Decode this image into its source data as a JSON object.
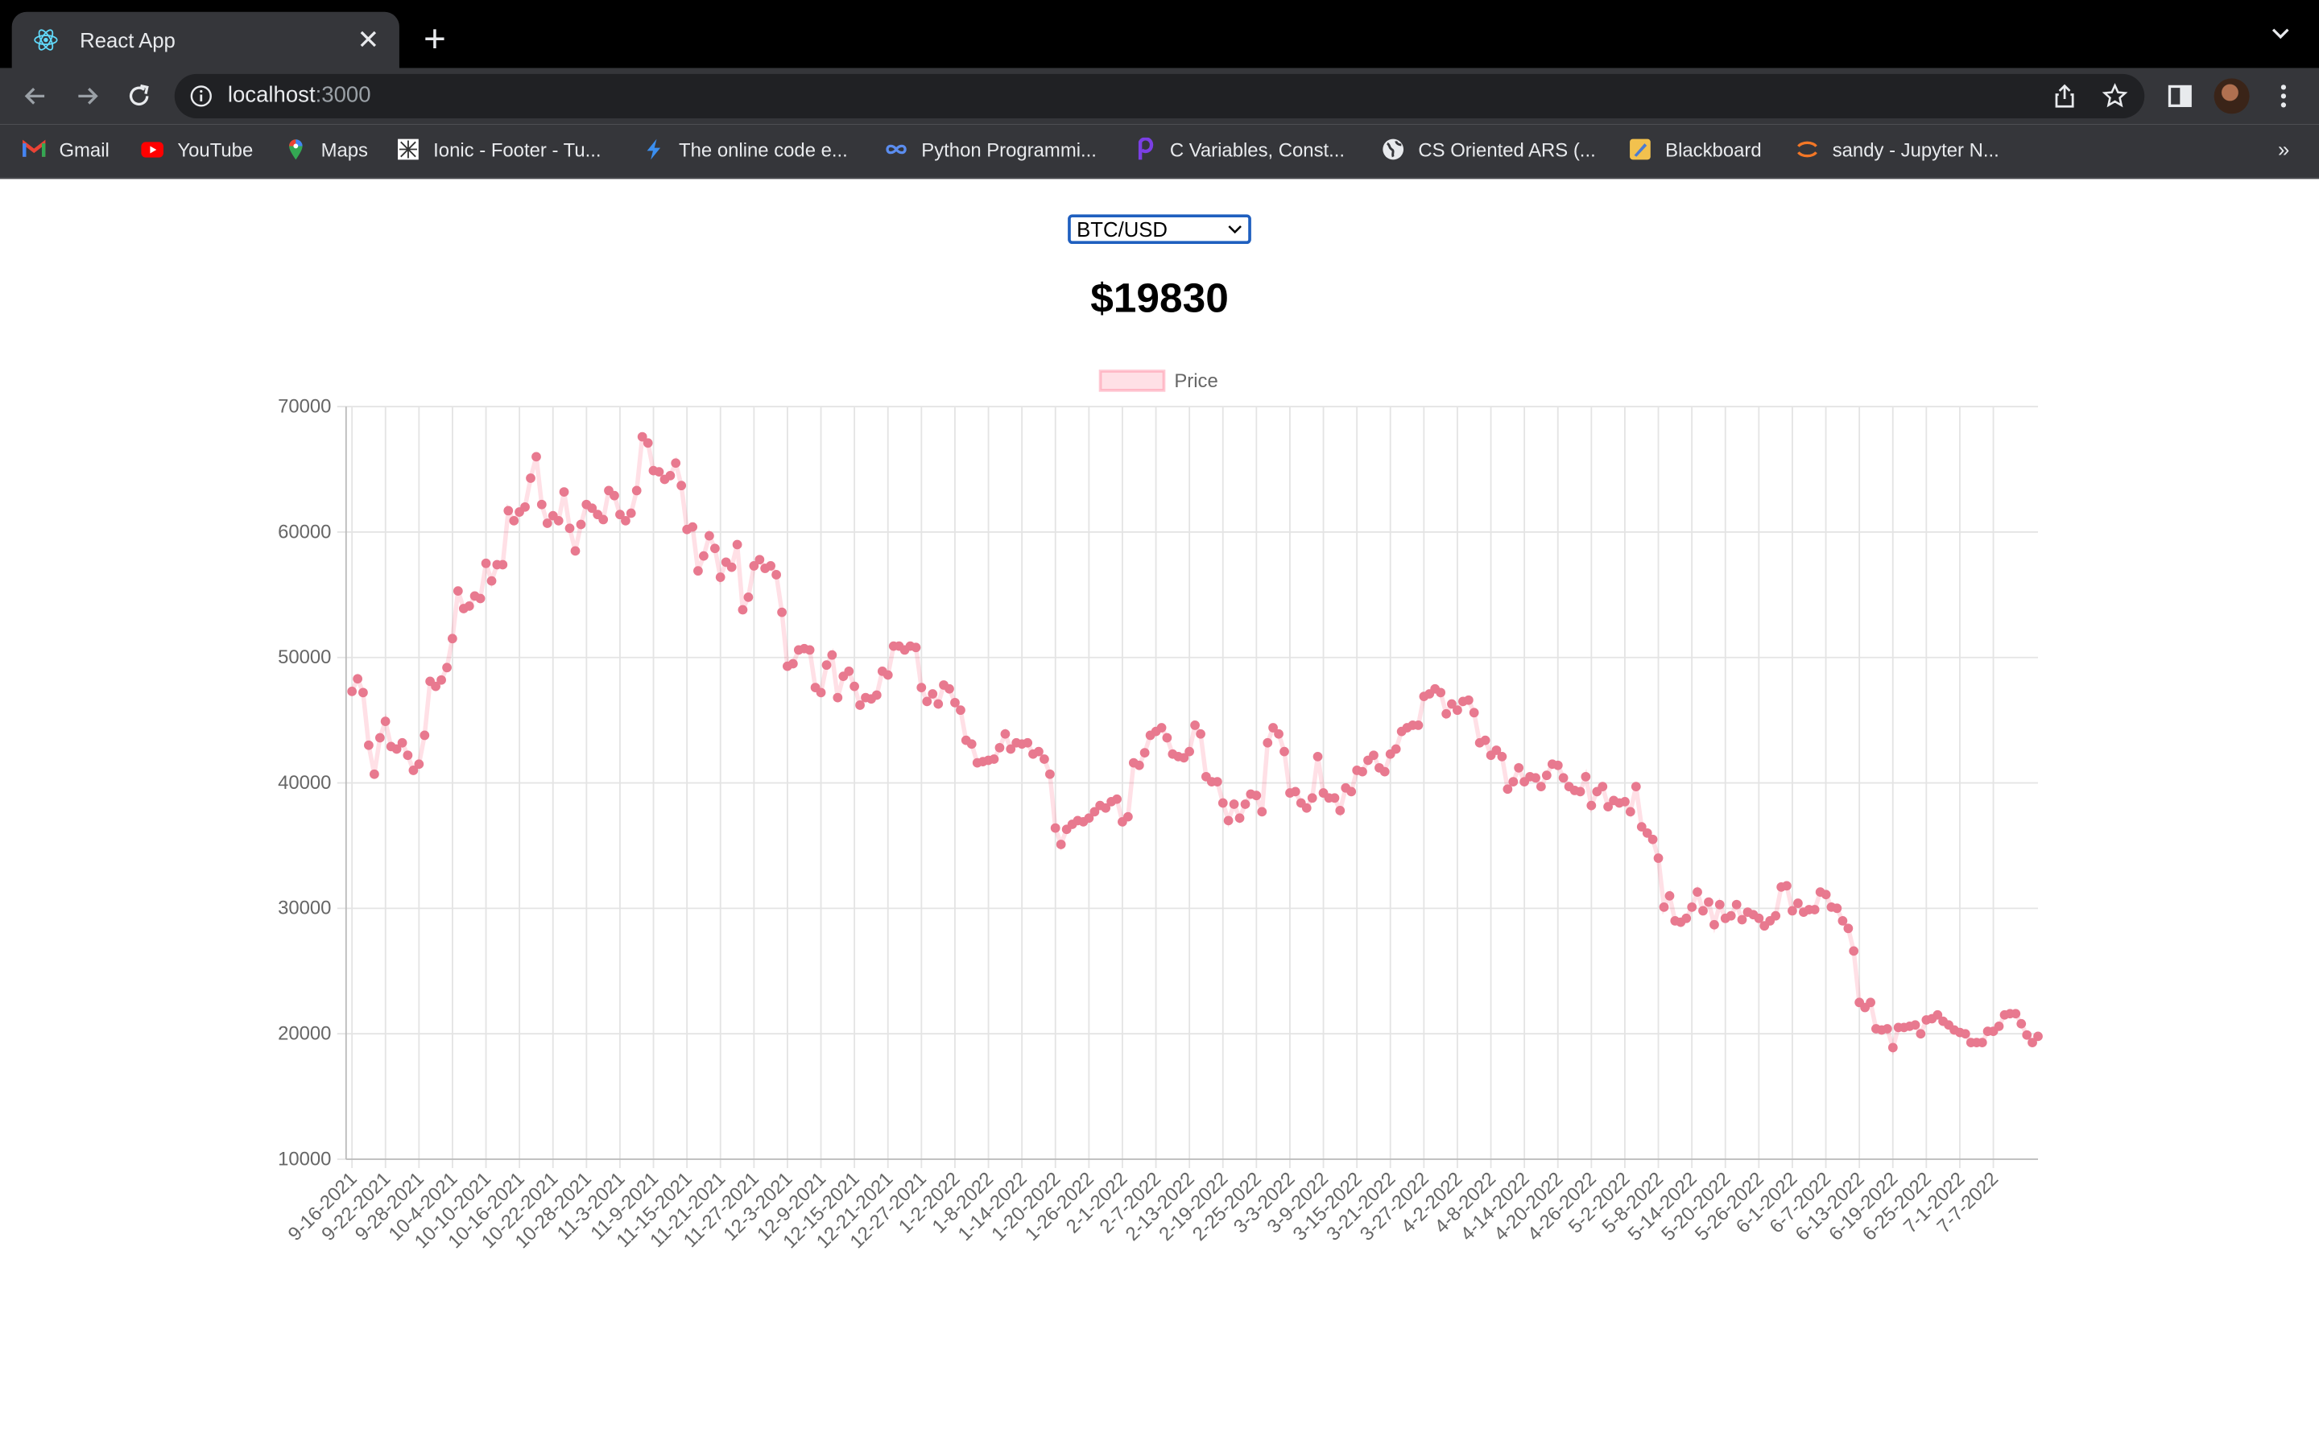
{
  "browser": {
    "tab": {
      "title": "React App"
    },
    "address": {
      "host": "localhost",
      "port": ":3000"
    },
    "bookmarks": [
      {
        "label": "Gmail",
        "icon": "gmail-icon"
      },
      {
        "label": "YouTube",
        "icon": "youtube-icon"
      },
      {
        "label": "Maps",
        "icon": "maps-icon"
      },
      {
        "label": "Ionic - Footer - Tu...",
        "icon": "ionic-icon"
      },
      {
        "label": "The online code e...",
        "icon": "bolt-icon"
      },
      {
        "label": "Python Programmi...",
        "icon": "infinity-icon"
      },
      {
        "label": "C Variables, Const...",
        "icon": "programiz-icon"
      },
      {
        "label": "CS Oriented ARS (...",
        "icon": "globe-icon"
      },
      {
        "label": "Blackboard",
        "icon": "blackboard-icon"
      },
      {
        "label": "sandy - Jupyter N...",
        "icon": "jupyter-icon"
      }
    ],
    "bookmarks_overflow": "»"
  },
  "page": {
    "select": {
      "value": "BTC/USD"
    },
    "price": "$19830"
  },
  "chart_data": {
    "type": "line",
    "legend": {
      "label": "Price",
      "position": "top"
    },
    "ylim": [
      10000,
      70000
    ],
    "yticks": [
      "70000",
      "60000",
      "50000",
      "40000",
      "30000",
      "20000",
      "10000"
    ],
    "grid": true,
    "line_color": "rgba(255, 99, 132, 0.2)",
    "point_color": "#e8798f",
    "x_start": "9-16-2021",
    "x_labels": [
      "9-16-2021",
      "9-22-2021",
      "9-28-2021",
      "10-4-2021",
      "10-10-2021",
      "10-16-2021",
      "10-22-2021",
      "10-28-2021",
      "11-3-2021",
      "11-9-2021",
      "11-15-2021",
      "11-21-2021",
      "11-27-2021",
      "12-3-2021",
      "12-9-2021",
      "12-15-2021",
      "12-21-2021",
      "12-27-2021",
      "1-2-2022",
      "1-8-2022",
      "1-14-2022",
      "1-20-2022",
      "1-26-2022",
      "2-1-2022",
      "2-7-2022",
      "2-13-2022",
      "2-19-2022",
      "2-25-2022",
      "3-3-2022",
      "3-9-2022",
      "3-15-2022",
      "3-21-2022",
      "3-27-2022",
      "4-2-2022",
      "4-8-2022",
      "4-14-2022",
      "4-20-2022",
      "4-26-2022",
      "5-2-2022",
      "5-8-2022",
      "5-14-2022",
      "5-20-2022",
      "5-26-2022",
      "6-1-2022",
      "6-7-2022",
      "6-13-2022",
      "6-19-2022",
      "6-25-2022",
      "7-1-2022",
      "7-7-2022"
    ],
    "series": [
      {
        "values": [
          47300,
          48300,
          47200,
          43000,
          40700,
          43600,
          44900,
          42900,
          42700,
          43200,
          42200,
          41000,
          41500,
          43800,
          48100,
          47700,
          48200,
          49200,
          51500,
          55300,
          53900,
          54100,
          54900,
          54700,
          57500,
          56100,
          57400,
          57400,
          61700,
          60900,
          61600,
          62000,
          64300,
          66000,
          62200,
          60700,
          61300,
          60900,
          63200,
          60300,
          58500,
          60600,
          62200,
          61900,
          61400,
          61000,
          63300,
          62900,
          61400,
          60900,
          61500,
          63300,
          67600,
          67100,
          64900,
          64800,
          64200,
          64500,
          65500,
          63700,
          60200,
          60400,
          56900,
          58100,
          59700,
          58700,
          56400,
          57600,
          57200,
          59000,
          53800,
          54800,
          57300,
          57800,
          57100,
          57300,
          56600,
          53600,
          49300,
          49500,
          50600,
          50700,
          50600,
          47600,
          47200,
          49400,
          50200,
          46800,
          48500,
          48900,
          47700,
          46200,
          46800,
          46700,
          47000,
          48900,
          48600,
          50900,
          50900,
          50600,
          50900,
          50800,
          47600,
          46500,
          47100,
          46300,
          47800,
          47500,
          46400,
          45800,
          43400,
          43100,
          41600,
          41700,
          41800,
          41900,
          42800,
          43900,
          42700,
          43200,
          43100,
          43200,
          42300,
          42500,
          41900,
          40700,
          36400,
          35100,
          36300,
          36700,
          37000,
          36900,
          37200,
          37700,
          38200,
          38000,
          38500,
          38700,
          36900,
          37300,
          41600,
          41400,
          42400,
          43800,
          44100,
          44400,
          43600,
          42300,
          42100,
          42000,
          42500,
          44600,
          43900,
          40500,
          40100,
          40100,
          38400,
          37000,
          38300,
          37200,
          38300,
          39100,
          39000,
          37700,
          43200,
          44400,
          43900,
          42500,
          39200,
          39300,
          38400,
          38000,
          38800,
          42100,
          39200,
          38800,
          38800,
          37800,
          39600,
          39300,
          41000,
          40900,
          41800,
          42200,
          41200,
          40900,
          42300,
          42700,
          44100,
          44400,
          44600,
          44600,
          46900,
          47100,
          47500,
          47200,
          45500,
          46300,
          45800,
          46500,
          46600,
          45600,
          43200,
          43400,
          42200,
          42600,
          42100,
          39500,
          40100,
          41200,
          40100,
          40500,
          40400,
          39700,
          40600,
          41500,
          41400,
          40400,
          39700,
          39400,
          39300,
          40500,
          38200,
          39300,
          39700,
          38100,
          38600,
          38400,
          38500,
          37700,
          39700,
          36500,
          36000,
          35500,
          34000,
          30100,
          31000,
          29000,
          28900,
          29200,
          30100,
          31300,
          29800,
          30500,
          28700,
          30300,
          29200,
          29400,
          30300,
          29100,
          29700,
          29500,
          29200,
          28600,
          29000,
          29400,
          31700,
          31800,
          29800,
          30400,
          29700,
          29900,
          29900,
          31300,
          31100,
          30100,
          30000,
          29000,
          28400,
          26600,
          22500,
          22100,
          22500,
          20400,
          20300,
          20400,
          18900,
          20500,
          20500,
          20600,
          20700,
          20000,
          21100,
          21200,
          21500,
          21000,
          20700,
          20300,
          20100,
          20000,
          19300,
          19300,
          19300,
          20200,
          20200,
          20600,
          21500,
          21600,
          21600,
          20800,
          19900,
          19300,
          19800
        ]
      }
    ]
  }
}
